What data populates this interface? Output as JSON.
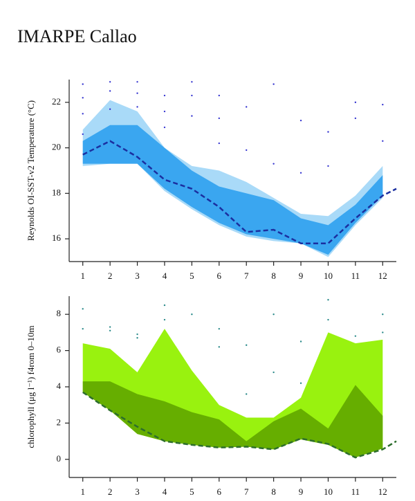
{
  "title": "IMARPE Callao",
  "chart_data": [
    {
      "type": "area",
      "ylabel": "Reynolds OI-SST-v2 Temperature (°C)",
      "xlim": [
        0.5,
        12.5
      ],
      "xticks": [
        1,
        2,
        3,
        4,
        5,
        6,
        7,
        8,
        9,
        10,
        11,
        12
      ],
      "ylim": [
        15,
        23
      ],
      "yticks": [
        16,
        18,
        20,
        22
      ],
      "series": [
        {
          "type": "band",
          "color": "#a9daf8",
          "x": [
            1,
            2,
            3,
            4,
            5,
            6,
            7,
            8,
            9,
            10,
            11,
            12
          ],
          "upper": [
            20.8,
            22.1,
            21.6,
            20.0,
            19.2,
            19.0,
            18.5,
            17.8,
            17.1,
            17.0,
            17.9,
            19.2
          ],
          "lower": [
            19.2,
            19.3,
            19.3,
            18.1,
            17.3,
            16.6,
            16.1,
            15.9,
            15.8,
            15.2,
            16.6,
            17.8
          ]
        },
        {
          "type": "band",
          "color": "#3aa6f0",
          "x": [
            1,
            2,
            3,
            4,
            5,
            6,
            7,
            8,
            9,
            10,
            11,
            12
          ],
          "upper": [
            20.3,
            21.0,
            21.0,
            20.0,
            19.0,
            18.3,
            18.0,
            17.7,
            16.9,
            16.6,
            17.5,
            18.8
          ],
          "lower": [
            19.3,
            19.3,
            19.3,
            18.2,
            17.4,
            16.7,
            16.2,
            16.0,
            15.8,
            15.3,
            16.7,
            17.9
          ]
        },
        {
          "type": "line",
          "color": "#1b2fa0",
          "x": [
            1,
            2,
            3,
            4,
            5,
            6,
            7,
            8,
            9,
            10,
            11,
            12,
            12.5
          ],
          "values": [
            19.7,
            20.3,
            19.6,
            18.6,
            18.2,
            17.4,
            16.3,
            16.4,
            15.8,
            15.8,
            16.9,
            17.9,
            18.2
          ]
        },
        {
          "type": "scatter",
          "color": "#3535d0",
          "x": [
            1,
            1,
            1,
            1,
            2,
            2,
            2,
            3,
            3,
            3,
            4,
            4,
            4,
            5,
            5,
            5,
            6,
            6,
            6,
            7,
            7,
            8,
            8,
            9,
            9,
            10,
            10,
            11,
            11,
            12,
            12
          ],
          "values": [
            22.8,
            22.2,
            21.5,
            20.6,
            22.9,
            22.5,
            21.7,
            22.9,
            22.4,
            21.8,
            22.3,
            21.6,
            20.9,
            22.9,
            22.3,
            21.4,
            22.3,
            21.3,
            20.2,
            21.8,
            19.9,
            22.8,
            19.3,
            21.2,
            18.9,
            20.7,
            19.2,
            22.0,
            21.3,
            21.9,
            20.3
          ]
        }
      ]
    },
    {
      "type": "area",
      "ylabel": "chlorophyll (μg l⁻¹) f4rom 0–10m",
      "xlim": [
        0.5,
        12.5
      ],
      "xticks": [
        1,
        2,
        3,
        4,
        5,
        6,
        7,
        8,
        9,
        10,
        11,
        12
      ],
      "ylim": [
        -1,
        9
      ],
      "yticks": [
        0,
        2,
        4,
        6,
        8
      ],
      "series": [
        {
          "type": "band",
          "color": "#99f20f",
          "x": [
            1,
            2,
            3,
            4,
            5,
            6,
            7,
            8,
            9,
            10,
            11,
            12
          ],
          "upper": [
            6.4,
            6.1,
            4.8,
            7.2,
            4.9,
            3.0,
            2.3,
            2.3,
            3.4,
            7.0,
            6.4,
            6.6
          ],
          "lower": [
            3.7,
            2.7,
            1.4,
            1.0,
            0.8,
            0.65,
            0.7,
            0.55,
            1.1,
            0.8,
            0.1,
            0.6
          ]
        },
        {
          "type": "band",
          "color": "#66ae00",
          "x": [
            1,
            2,
            3,
            4,
            5,
            6,
            7,
            8,
            9,
            10,
            11,
            12
          ],
          "upper": [
            4.3,
            4.3,
            3.6,
            3.2,
            2.6,
            2.2,
            1.0,
            2.1,
            2.8,
            1.7,
            4.1,
            2.4
          ],
          "lower": [
            3.7,
            2.7,
            1.4,
            1.0,
            0.8,
            0.65,
            0.7,
            0.55,
            1.1,
            0.8,
            0.1,
            0.6
          ]
        },
        {
          "type": "line",
          "color": "#2d6e2d",
          "x": [
            1,
            2,
            3,
            4,
            5,
            6,
            7,
            8,
            9,
            10,
            11,
            12,
            12.5
          ],
          "values": [
            3.7,
            2.7,
            1.8,
            1.0,
            0.8,
            0.65,
            0.7,
            0.55,
            1.15,
            0.85,
            0.1,
            0.55,
            1.0
          ]
        },
        {
          "type": "scatter",
          "color": "#2a8a8a",
          "x": [
            1,
            1,
            2,
            2,
            3,
            3,
            4,
            4,
            5,
            6,
            6,
            7,
            7,
            8,
            8,
            9,
            9,
            10,
            10,
            11,
            12,
            12
          ],
          "values": [
            8.3,
            7.2,
            7.3,
            7.1,
            6.9,
            6.7,
            8.5,
            7.7,
            8.0,
            7.2,
            6.2,
            6.3,
            3.6,
            8.0,
            4.8,
            6.5,
            4.2,
            8.8,
            7.7,
            6.8,
            8.0,
            7.0
          ]
        }
      ]
    }
  ]
}
